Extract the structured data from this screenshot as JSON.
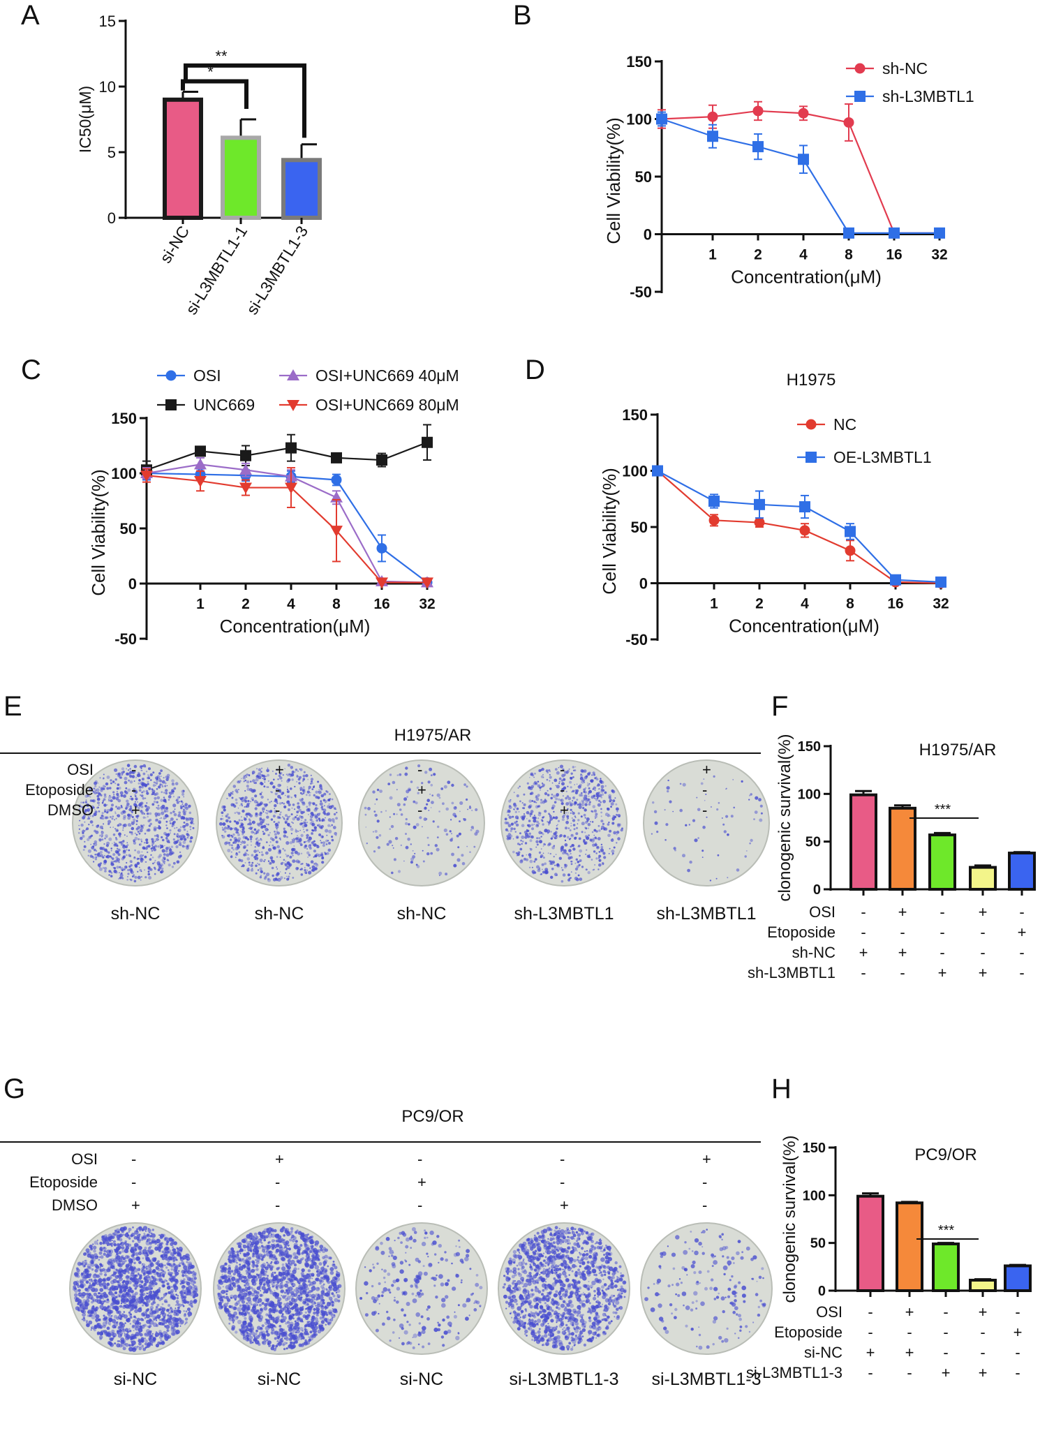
{
  "panels": {
    "A": {
      "letter": "A"
    },
    "B": {
      "letter": "B"
    },
    "C": {
      "letter": "C"
    },
    "D": {
      "letter": "D"
    },
    "E": {
      "letter": "E",
      "title": "H1975/AR",
      "rows": [
        {
          "label": "OSI",
          "signs": [
            "-",
            "+",
            "-",
            "-",
            "+"
          ]
        },
        {
          "label": "Etoposide",
          "signs": [
            "-",
            "-",
            "+",
            "-",
            "-"
          ]
        },
        {
          "label": "DMSO",
          "signs": [
            "+",
            "-",
            "-",
            "+",
            "-"
          ]
        }
      ],
      "dishes": [
        "sh-NC",
        "sh-NC",
        "sh-NC",
        "sh-L3MBTL1",
        "sh-L3MBTL1"
      ]
    },
    "F": {
      "letter": "F"
    },
    "G": {
      "letter": "G",
      "title": "PC9/OR",
      "rows": [
        {
          "label": "OSI",
          "signs": [
            "-",
            "+",
            "-",
            "-",
            "+"
          ]
        },
        {
          "label": "Etoposide",
          "signs": [
            "-",
            "-",
            "+",
            "-",
            "-"
          ]
        },
        {
          "label": "DMSO",
          "signs": [
            "+",
            "-",
            "-",
            "+",
            "-"
          ]
        }
      ],
      "dishes": [
        "si-NC",
        "si-NC",
        "si-NC",
        "si-L3MBTL1-3",
        "si-L3MBTL1-3"
      ]
    },
    "H": {
      "letter": "H"
    }
  },
  "colors": {
    "pink": "#e85b86",
    "green": "#6ee82a",
    "blue": "#3a64f0",
    "orange": "#f5893a",
    "yellow": "#f3f58a",
    "red": "#e0474c",
    "black": "#1a1a1a",
    "purple": "#9b6cc8",
    "redline": "#e23b2f",
    "stain": "#4a4fd0",
    "dishbg": "#d9dcd6"
  },
  "chart_data": [
    {
      "panel": "A",
      "type": "bar",
      "ylabel": "IC50(μM)",
      "ylim": [
        0,
        15
      ],
      "yticks": [
        0,
        5,
        10,
        15
      ],
      "categories": [
        "si-NC",
        "si-L3MBTL1-1",
        "si-L3MBTL1-3"
      ],
      "values": [
        9.0,
        6.1,
        4.4
      ],
      "errors": [
        0.6,
        1.4,
        1.2
      ],
      "bar_colors": [
        "#e85b86",
        "#6ee82a",
        "#3a64f0"
      ],
      "edge_colors": [
        "#1a1a1a",
        "#a8a8a8",
        "#7a7a7a"
      ],
      "annotations": [
        {
          "label": "*",
          "from": 0,
          "to": 1
        },
        {
          "label": "**",
          "from": 0,
          "to": 2
        }
      ]
    },
    {
      "panel": "B",
      "type": "line",
      "xlabel": "Concentration(μM)",
      "ylabel": "Cell Viability(%)",
      "ylim": [
        -50,
        150
      ],
      "yticks": [
        -50,
        0,
        50,
        100,
        150
      ],
      "x": [
        "0",
        "1",
        "2",
        "4",
        "8",
        "16",
        "32"
      ],
      "xticks": [
        "1",
        "2",
        "4",
        "8",
        "16",
        "32"
      ],
      "series": [
        {
          "name": "sh-NC",
          "marker": "circle",
          "color": "#e23b4f",
          "values": [
            100,
            102,
            107,
            105,
            97,
            1,
            1
          ],
          "errors": [
            8,
            10,
            8,
            6,
            16,
            1,
            1
          ]
        },
        {
          "name": "sh-L3MBTL1",
          "marker": "square",
          "color": "#2f6fe6",
          "values": [
            100,
            85,
            76,
            65,
            1,
            1,
            1
          ],
          "errors": [
            6,
            10,
            11,
            12,
            1,
            1,
            1
          ]
        }
      ]
    },
    {
      "panel": "C",
      "type": "line",
      "xlabel": "Concentration(μM)",
      "ylabel": "Cell Viability(%)",
      "ylim": [
        -50,
        150
      ],
      "yticks": [
        -50,
        0,
        50,
        100,
        150
      ],
      "x": [
        "0",
        "1",
        "2",
        "4",
        "8",
        "16",
        "32"
      ],
      "xticks": [
        "1",
        "2",
        "4",
        "8",
        "16",
        "32"
      ],
      "series": [
        {
          "name": "OSI",
          "marker": "circle",
          "color": "#2f6fe6",
          "values": [
            100,
            99,
            98,
            97,
            94,
            32,
            1
          ],
          "errors": [
            6,
            5,
            5,
            5,
            5,
            12,
            1
          ]
        },
        {
          "name": "UNC669",
          "marker": "square",
          "color": "#1a1a1a",
          "values": [
            103,
            120,
            116,
            123,
            114,
            112,
            128
          ],
          "errors": [
            8,
            3,
            9,
            12,
            2,
            6,
            16
          ]
        },
        {
          "name": "OSI+UNC669 40μM",
          "marker": "triangle-up",
          "color": "#9b6cc8",
          "values": [
            100,
            108,
            103,
            97,
            78,
            2,
            1
          ],
          "errors": [
            5,
            6,
            6,
            6,
            6,
            1,
            1
          ]
        },
        {
          "name": "OSI+UNC669 80μM",
          "marker": "triangle-down",
          "color": "#e23b2f",
          "values": [
            98,
            93,
            87,
            87,
            48,
            1,
            1
          ],
          "errors": [
            6,
            9,
            7,
            18,
            28,
            1,
            1
          ]
        }
      ]
    },
    {
      "panel": "D",
      "type": "line",
      "title": "H1975",
      "xlabel": "Concentration(μM)",
      "ylabel": "Cell Viability(%)",
      "ylim": [
        -50,
        150
      ],
      "yticks": [
        -50,
        0,
        50,
        100,
        150
      ],
      "x": [
        "0",
        "1",
        "2",
        "4",
        "8",
        "16",
        "32"
      ],
      "xticks": [
        "1",
        "2",
        "4",
        "8",
        "16",
        "32"
      ],
      "series": [
        {
          "name": "NC",
          "marker": "circle",
          "color": "#e23b2f",
          "values": [
            100,
            56,
            54,
            47,
            29,
            1,
            0
          ],
          "errors": [
            4,
            5,
            4,
            6,
            9,
            1,
            1
          ]
        },
        {
          "name": "OE-L3MBTL1",
          "marker": "square",
          "color": "#2f6fe6",
          "values": [
            100,
            73,
            70,
            68,
            46,
            3,
            1
          ],
          "errors": [
            4,
            6,
            12,
            10,
            7,
            2,
            1
          ]
        }
      ]
    },
    {
      "panel": "F",
      "type": "bar",
      "title": "H1975/AR",
      "ylabel": "clonogenic survival(%)",
      "ylim": [
        0,
        150
      ],
      "yticks": [
        0,
        50,
        100,
        150
      ],
      "values": [
        99,
        85,
        57,
        23,
        38
      ],
      "errors": [
        4,
        3,
        2,
        2,
        1
      ],
      "bar_colors": [
        "#e85b86",
        "#f5893a",
        "#6ee82a",
        "#f3f58a",
        "#3a64f0"
      ],
      "significance": {
        "label": "***",
        "from": 1,
        "to": 3
      },
      "condition_rows": [
        {
          "label": "OSI",
          "signs": [
            "-",
            "+",
            "-",
            "+",
            "-"
          ]
        },
        {
          "label": "Etoposide",
          "signs": [
            "-",
            "-",
            "-",
            "-",
            "+"
          ]
        },
        {
          "label": "sh-NC",
          "signs": [
            "+",
            "+",
            "-",
            "-",
            "-"
          ]
        },
        {
          "label": "sh-L3MBTL1",
          "signs": [
            "-",
            "-",
            "+",
            "+",
            "-"
          ]
        }
      ]
    },
    {
      "panel": "H",
      "type": "bar",
      "title": "PC9/OR",
      "ylabel": "clonogenic survival(%)",
      "ylim": [
        0,
        150
      ],
      "yticks": [
        0,
        50,
        100,
        150
      ],
      "values": [
        99,
        92,
        49,
        11,
        26
      ],
      "errors": [
        3,
        1,
        1,
        1,
        1
      ],
      "bar_colors": [
        "#e85b86",
        "#f5893a",
        "#6ee82a",
        "#f3f58a",
        "#3a64f0"
      ],
      "significance": {
        "label": "***",
        "from": 1,
        "to": 3
      },
      "condition_rows": [
        {
          "label": "OSI",
          "signs": [
            "-",
            "+",
            "-",
            "+",
            "-"
          ]
        },
        {
          "label": "Etoposide",
          "signs": [
            "-",
            "-",
            "-",
            "-",
            "+"
          ]
        },
        {
          "label": "si-NC",
          "signs": [
            "+",
            "+",
            "-",
            "-",
            "-"
          ]
        },
        {
          "label": "si-L3MBTL1-3",
          "signs": [
            "-",
            "-",
            "+",
            "+",
            "-"
          ]
        }
      ]
    }
  ]
}
